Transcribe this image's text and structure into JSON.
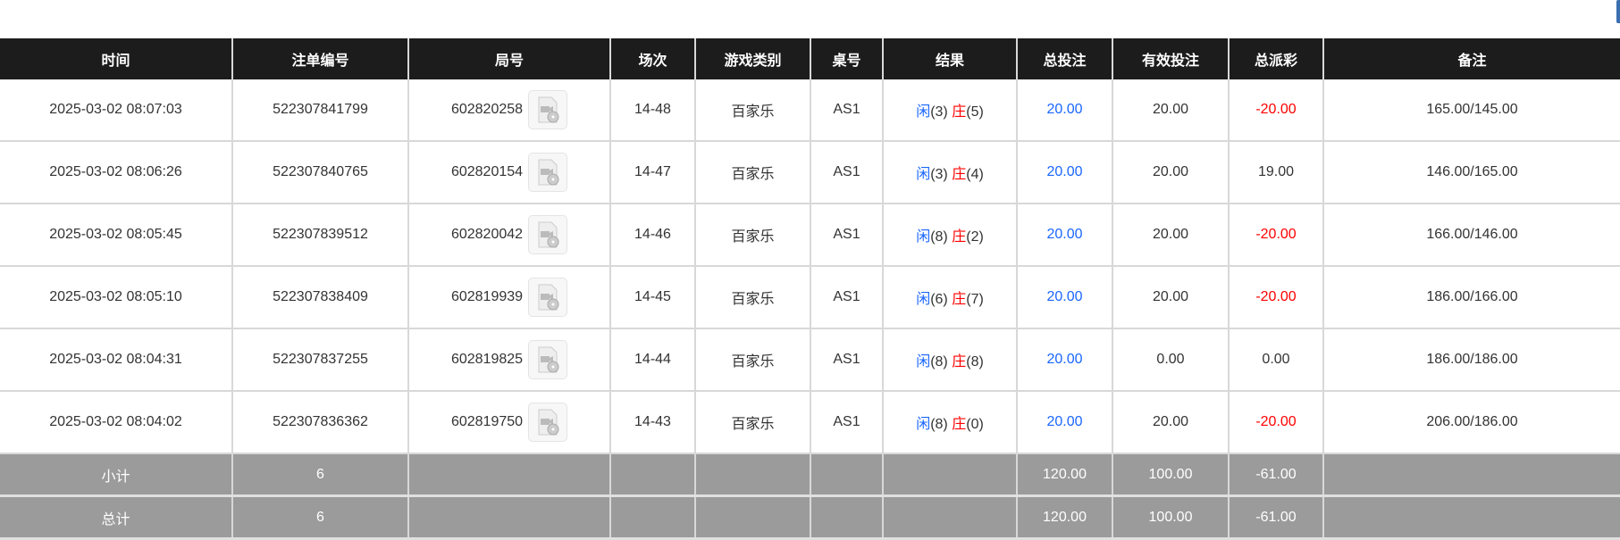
{
  "headers": [
    "时间",
    "注单编号",
    "局号",
    "场次",
    "游戏类别",
    "桌号",
    "结果",
    "总投注",
    "有效投注",
    "总派彩",
    "备注"
  ],
  "rows": [
    {
      "time": "2025-03-02 08:07:03",
      "bet_id": "522307841799",
      "round": "602820258",
      "session": "14-48",
      "game": "百家乐",
      "table": "AS1",
      "player": "闲",
      "player_score": "(3)",
      "banker": "庄",
      "banker_score": "(5)",
      "total_bet": "20.00",
      "valid_bet": "20.00",
      "payout": "-20.00",
      "payout_negative": true,
      "note": "165.00/145.00"
    },
    {
      "time": "2025-03-02 08:06:26",
      "bet_id": "522307840765",
      "round": "602820154",
      "session": "14-47",
      "game": "百家乐",
      "table": "AS1",
      "player": "闲",
      "player_score": "(3)",
      "banker": "庄",
      "banker_score": "(4)",
      "total_bet": "20.00",
      "valid_bet": "20.00",
      "payout": "19.00",
      "payout_negative": false,
      "note": "146.00/165.00"
    },
    {
      "time": "2025-03-02 08:05:45",
      "bet_id": "522307839512",
      "round": "602820042",
      "session": "14-46",
      "game": "百家乐",
      "table": "AS1",
      "player": "闲",
      "player_score": "(8)",
      "banker": "庄",
      "banker_score": "(2)",
      "total_bet": "20.00",
      "valid_bet": "20.00",
      "payout": "-20.00",
      "payout_negative": true,
      "note": "166.00/146.00"
    },
    {
      "time": "2025-03-02 08:05:10",
      "bet_id": "522307838409",
      "round": "602819939",
      "session": "14-45",
      "game": "百家乐",
      "table": "AS1",
      "player": "闲",
      "player_score": "(6)",
      "banker": "庄",
      "banker_score": "(7)",
      "total_bet": "20.00",
      "valid_bet": "20.00",
      "payout": "-20.00",
      "payout_negative": true,
      "note": "186.00/166.00"
    },
    {
      "time": "2025-03-02 08:04:31",
      "bet_id": "522307837255",
      "round": "602819825",
      "session": "14-44",
      "game": "百家乐",
      "table": "AS1",
      "player": "闲",
      "player_score": "(8)",
      "banker": "庄",
      "banker_score": "(8)",
      "total_bet": "20.00",
      "valid_bet": "0.00",
      "payout": "0.00",
      "payout_negative": false,
      "note": "186.00/186.00"
    },
    {
      "time": "2025-03-02 08:04:02",
      "bet_id": "522307836362",
      "round": "602819750",
      "session": "14-43",
      "game": "百家乐",
      "table": "AS1",
      "player": "闲",
      "player_score": "(8)",
      "banker": "庄",
      "banker_score": "(0)",
      "total_bet": "20.00",
      "valid_bet": "20.00",
      "payout": "-20.00",
      "payout_negative": true,
      "note": "206.00/186.00"
    }
  ],
  "summary": [
    {
      "label": "小计",
      "count": "6",
      "total_bet": "120.00",
      "valid_bet": "100.00",
      "payout": "-61.00"
    },
    {
      "label": "总计",
      "count": "6",
      "total_bet": "120.00",
      "valid_bet": "100.00",
      "payout": "-61.00"
    }
  ],
  "colors": {
    "player": "#1a66ff",
    "banker": "#ff0000",
    "header_bg": "#1c1c1c",
    "summary_bg": "#9b9b9b"
  }
}
